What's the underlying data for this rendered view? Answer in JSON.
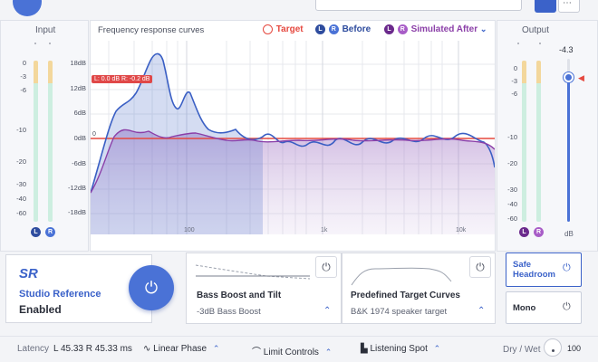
{
  "input": {
    "label": "Input",
    "ticks": [
      "0",
      "-3",
      "-6",
      "-10",
      "-20",
      "-30",
      "-40",
      "-60"
    ],
    "channels": [
      "L",
      "R"
    ]
  },
  "output": {
    "label": "Output",
    "ticks": [
      "0",
      "-3",
      "-6",
      "-10",
      "-20",
      "-30",
      "-40",
      "-60"
    ],
    "channels": [
      "L",
      "R"
    ],
    "gain_value": "-4.3",
    "unit": "dB"
  },
  "graph": {
    "title": "Frequency response curves",
    "legend_target": "Target",
    "legend_before": "Before",
    "legend_after": "Simulated After",
    "db_ticks": [
      "18dB",
      "12dB",
      "6dB",
      "0dB",
      "-6dB",
      "-12dB",
      "-18dB"
    ],
    "freq_ticks": [
      "100",
      "1k",
      "10k"
    ],
    "zero_label": "0",
    "tag": "L: 0.0 dB R: -0.2 dB",
    "colors": {
      "target": "#e5483f",
      "before": "#3a5fc4",
      "after": "#8b3fa8",
      "accent": "#3b62c9"
    }
  },
  "studio": {
    "logo": "SR",
    "name": "Studio Reference",
    "status": "Enabled"
  },
  "bass": {
    "title": "Bass Boost and Tilt",
    "value": "-3dB Bass Boost"
  },
  "target_curves": {
    "title": "Predefined Target Curves",
    "value": "B&K 1974 speaker target"
  },
  "side": {
    "safe_headroom": "Safe Headroom",
    "mono": "Mono"
  },
  "bottom": {
    "latency_label": "Latency",
    "latency_value": "L 45.33  R 45.33 ms",
    "linear_phase": "Linear Phase",
    "limit_controls": "Limit Controls",
    "listening_spot": "Listening Spot",
    "dry_wet_label": "Dry / Wet",
    "dry_wet_value": "100"
  }
}
